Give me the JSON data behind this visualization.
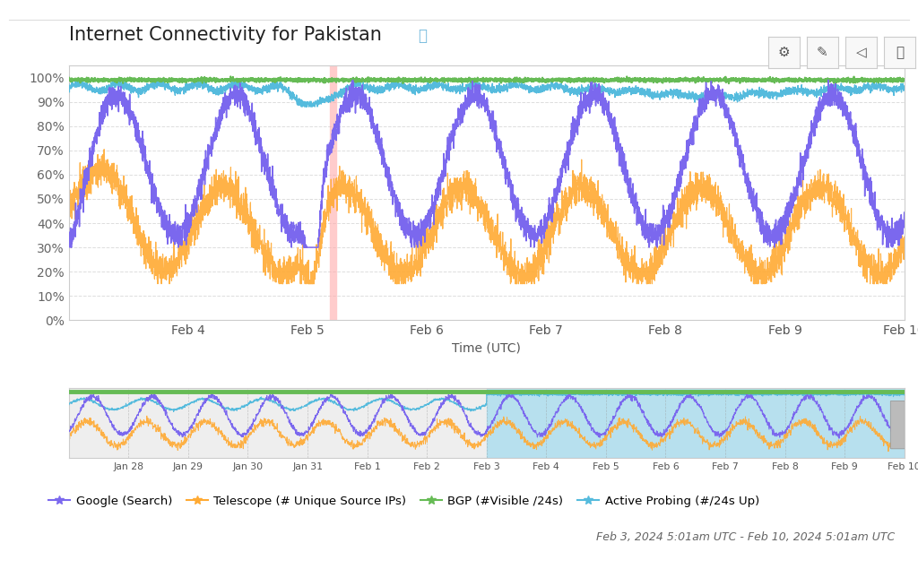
{
  "title": "Internet Connectivity for Pakistan",
  "subtitle": "Feb 3, 2024 5:01am UTC - Feb 10, 2024 5:01am UTC",
  "xlabel": "Time (UTC)",
  "bg_color": "#ffffff",
  "plot_bg_color": "#ffffff",
  "grid_color": "#dddddd",
  "border_color": "#cccccc",
  "main_ylim": [
    0,
    105
  ],
  "y_ticks": [
    0,
    10,
    20,
    30,
    40,
    50,
    60,
    70,
    80,
    90,
    100
  ],
  "y_tick_labels": [
    "0%",
    "10%",
    "20%",
    "30%",
    "40%",
    "50%",
    "60%",
    "70%",
    "80%",
    "90%",
    "100%"
  ],
  "series_colors": {
    "google": "#7b68ee",
    "telescope": "#ffaa33",
    "bgp": "#66bb55",
    "active": "#55bbdd"
  },
  "vertical_line_color": "#ffaaaa",
  "minimap_highlight_color": "#aaddee",
  "minimap_bg_color": "#eeeeee",
  "title_fontsize": 15,
  "axis_label_fontsize": 10,
  "tick_fontsize": 10,
  "legend_fontsize": 9.5,
  "subtitle_fontsize": 9
}
